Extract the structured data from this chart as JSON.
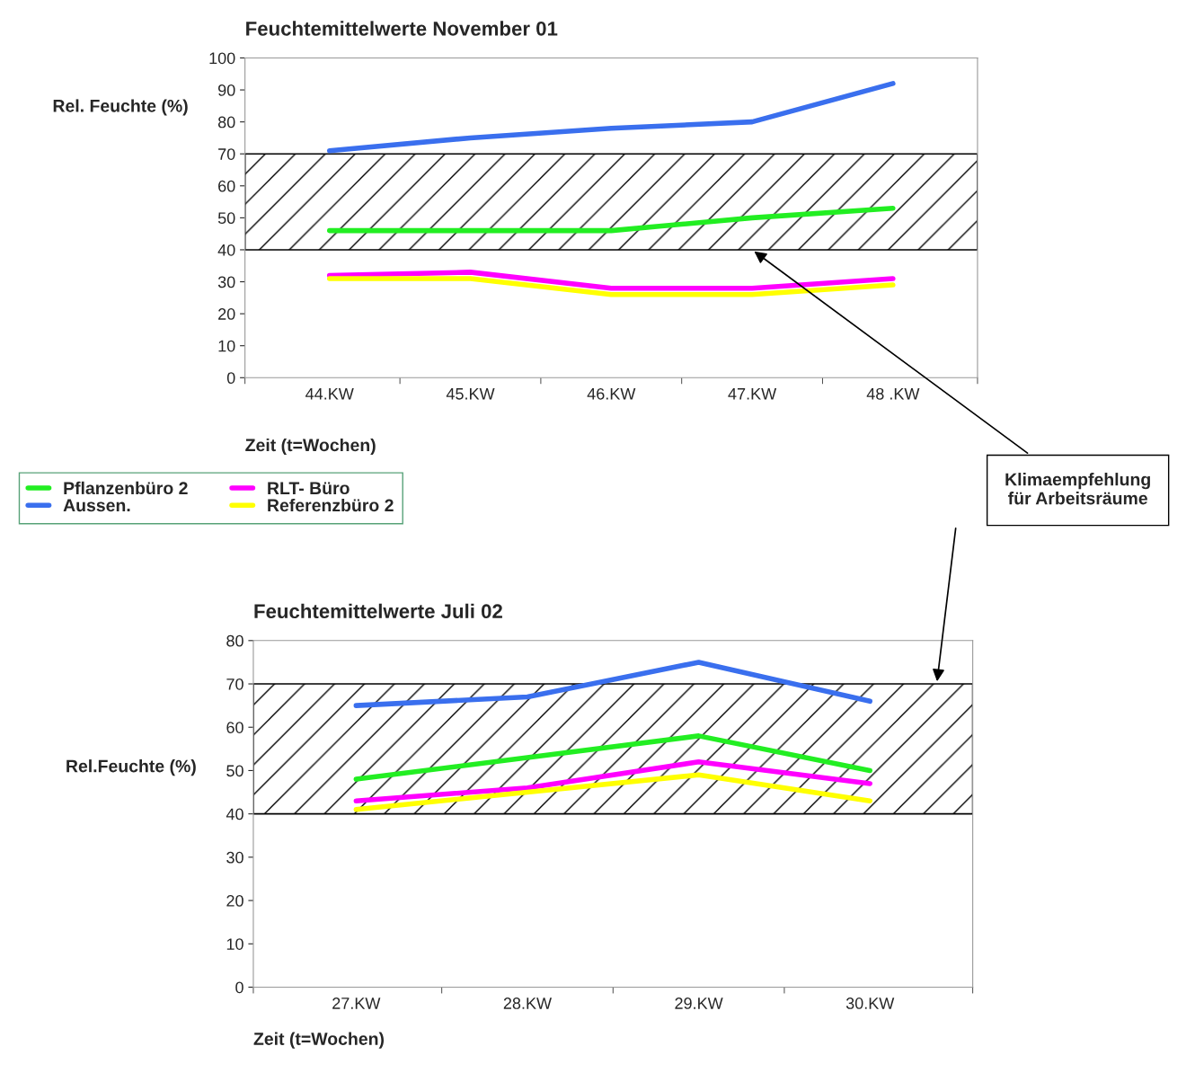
{
  "chart_data": [
    {
      "type": "line",
      "title": "Feuchtemittelwerte November 01",
      "xlabel": "Zeit (t=Wochen)",
      "ylabel": "Rel. Feuchte (%)",
      "categories": [
        "44.KW",
        "45.KW",
        "46.KW",
        "47.KW",
        "48 .KW"
      ],
      "series": [
        {
          "name": "Pflanzenbüro 2",
          "color": "#22ee22",
          "values": [
            46,
            46,
            46,
            50,
            53
          ]
        },
        {
          "name": "Aussen.",
          "color": "#3a6fee",
          "values": [
            71,
            75,
            78,
            80,
            92
          ]
        },
        {
          "name": "RLT- Büro",
          "color": "#ff00ff",
          "values": [
            32,
            33,
            28,
            28,
            31
          ]
        },
        {
          "name": "Referenzbüro 2",
          "color": "#ffff00",
          "values": [
            31,
            31,
            26,
            26,
            29
          ]
        }
      ],
      "ylim": [
        0,
        100
      ],
      "yticks": [
        0,
        10,
        20,
        30,
        40,
        50,
        60,
        70,
        80,
        90,
        100
      ],
      "bands": [
        {
          "axis": "y",
          "from": 40,
          "to": 70
        }
      ],
      "annotations": [
        "Klimaempfehlung\nfür Arbeitsräume"
      ],
      "legend": "bottom left",
      "grid": false,
      "marker": "none",
      "line_style": "solid"
    },
    {
      "type": "line",
      "title": "Feuchtemittelwerte Juli 02",
      "xlabel": "Zeit (t=Wochen)",
      "ylabel": "Rel.Feuchte (%)",
      "categories": [
        "27.KW",
        "28.KW",
        "29.KW",
        "30.KW"
      ],
      "series": [
        {
          "color": "#22ee22",
          "values": [
            48,
            53,
            58,
            50
          ]
        },
        {
          "color": "#3a6fee",
          "values": [
            65,
            67,
            75,
            66
          ]
        },
        {
          "color": "#ff00ff",
          "values": [
            43,
            46,
            52,
            47
          ]
        },
        {
          "color": "#ffff00",
          "values": [
            41,
            45,
            49,
            43
          ]
        }
      ],
      "ylim": [
        0,
        80
      ],
      "yticks": [
        0,
        10,
        20,
        30,
        40,
        50,
        60,
        70,
        80
      ],
      "bands": [
        {
          "axis": "y",
          "from": 40,
          "to": 70
        }
      ],
      "grid": false,
      "marker": "none",
      "line_style": "solid"
    }
  ]
}
